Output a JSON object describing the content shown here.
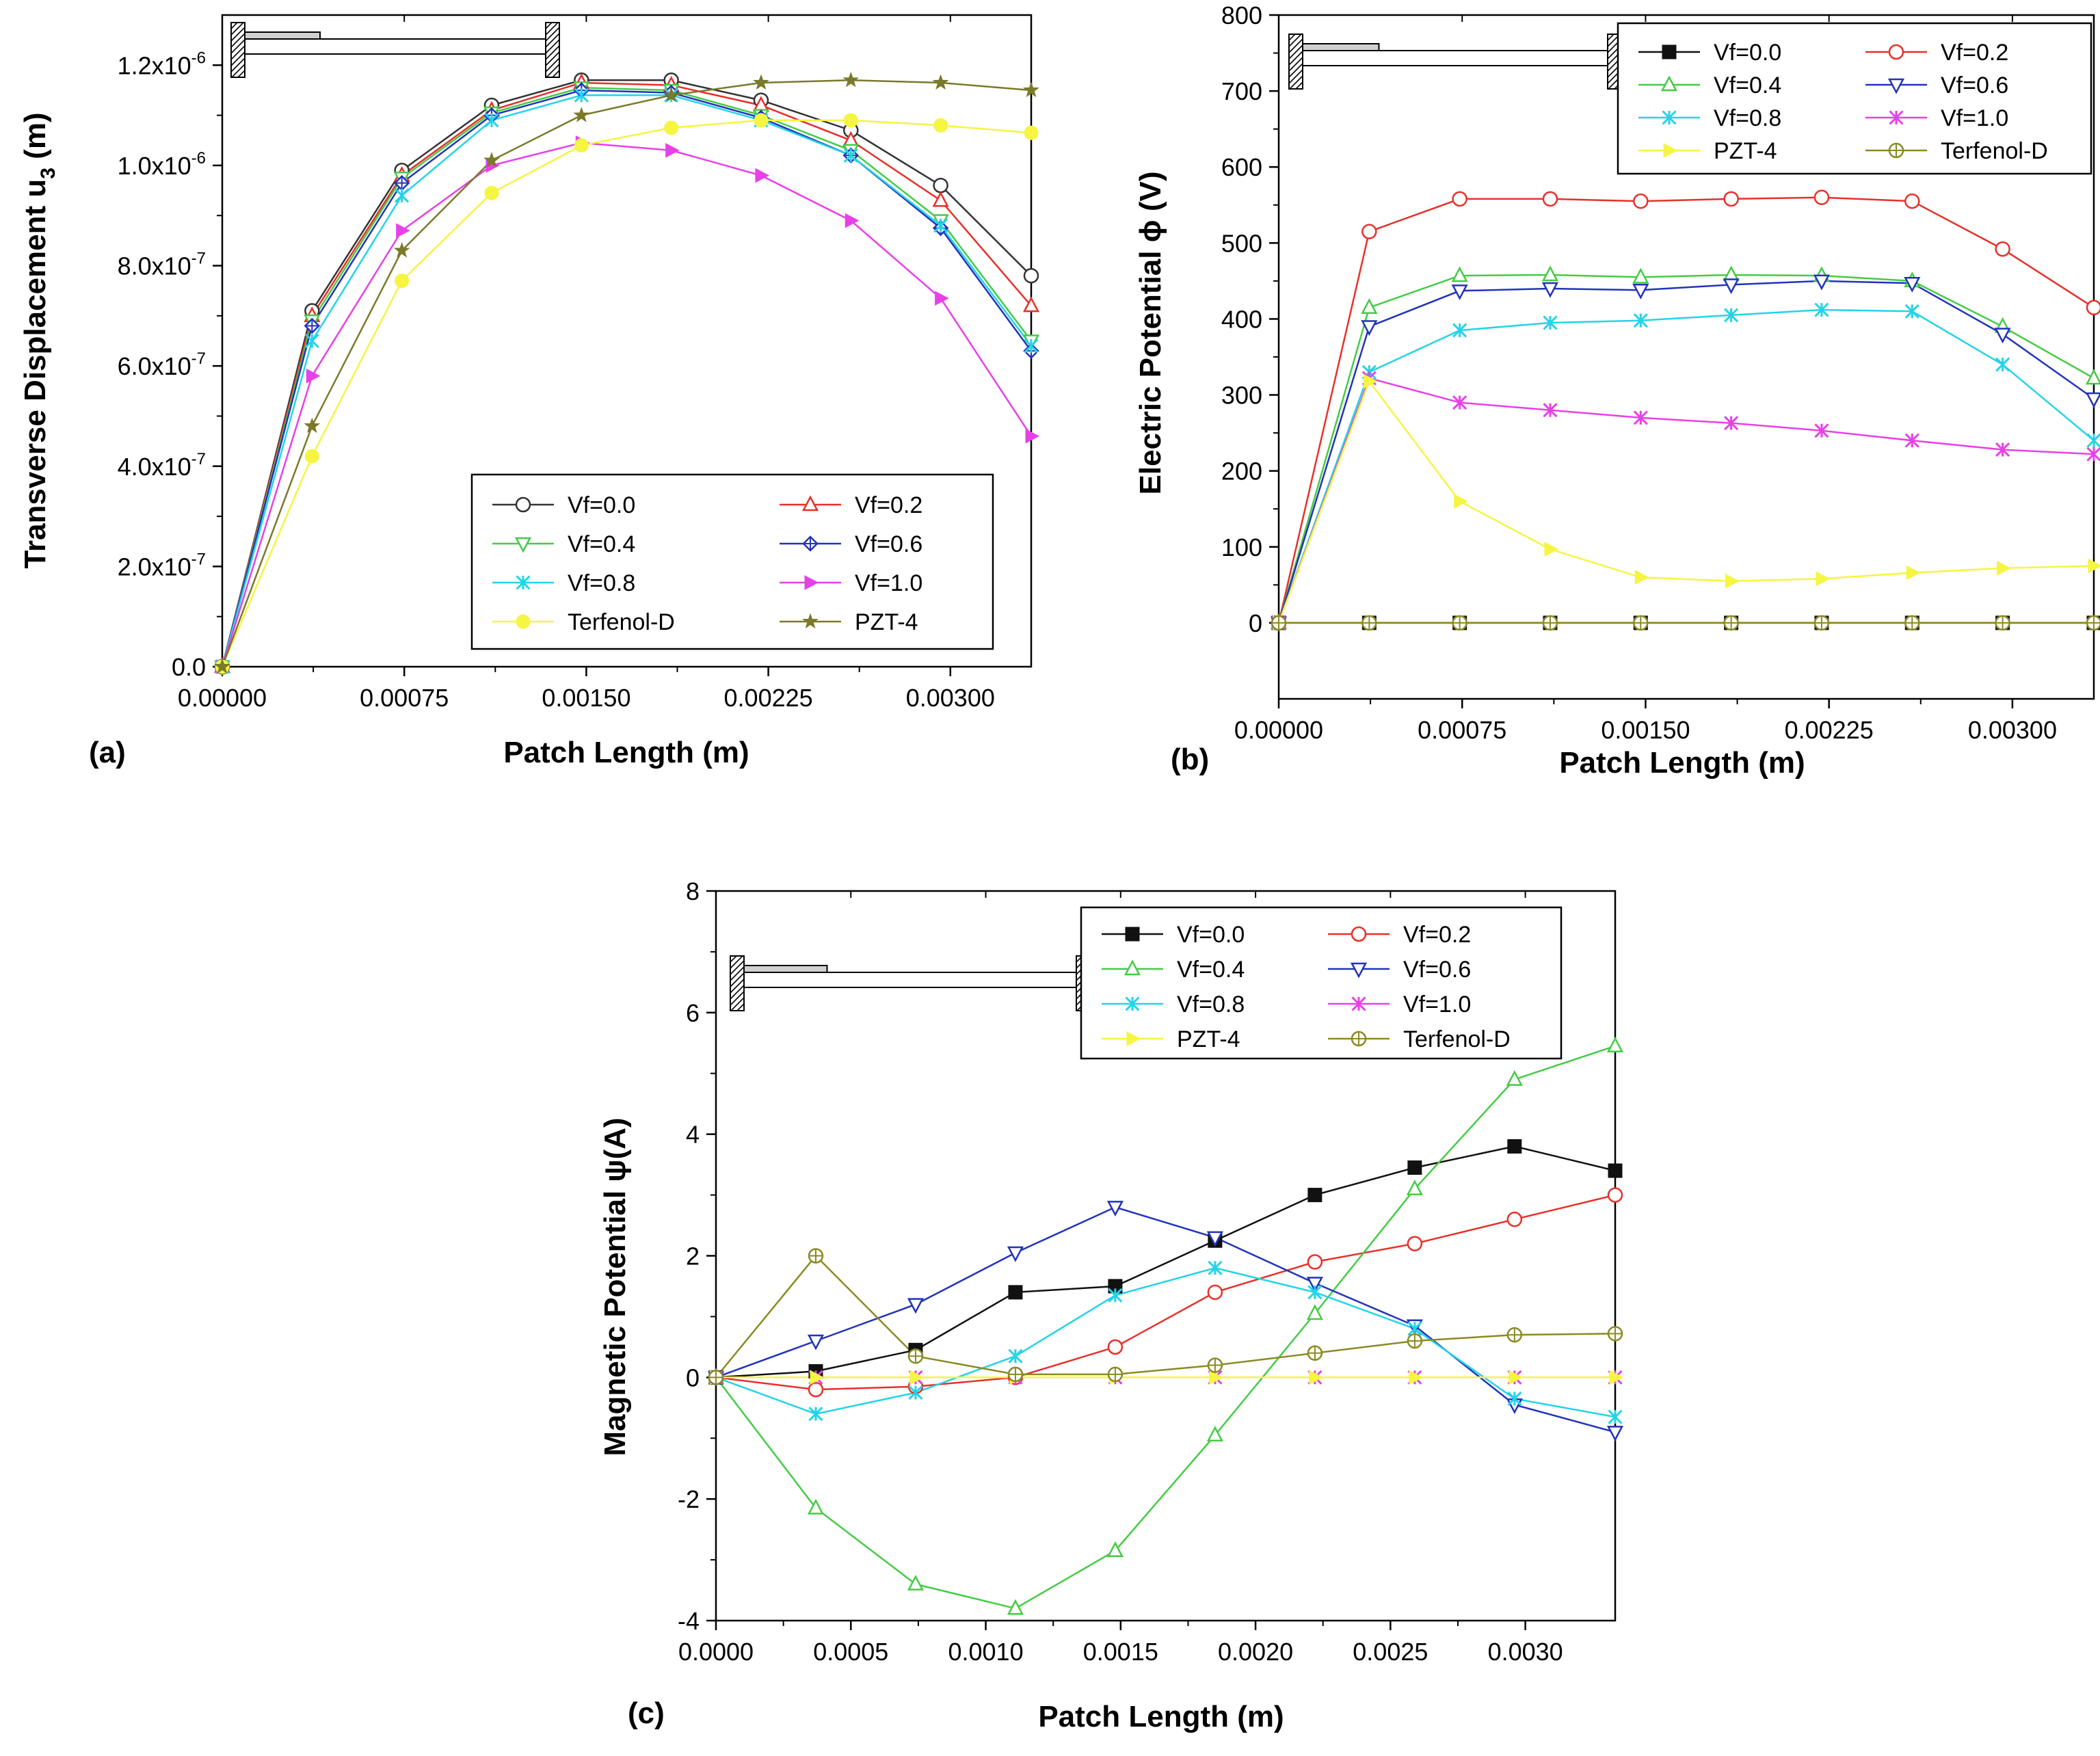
{
  "chart_data": [
    {
      "panel": "(a)",
      "type": "line",
      "xlabel": "Patch Length (m)",
      "ylabel": "Transverse Displacement u3 (m)",
      "ylabel_parts": [
        "Transverse Displacement u",
        "3",
        " (m)"
      ],
      "xlim": [
        0,
        0.003333
      ],
      "ylim": [
        0,
        1.3e-06
      ],
      "xticks": [
        0,
        0.00075,
        0.0015,
        0.00225,
        0.003
      ],
      "xtick_labels": [
        "0.00000",
        "0.00075",
        "0.00150",
        "0.00225",
        "0.00300"
      ],
      "yticks": [
        0,
        2e-07,
        4e-07,
        6e-07,
        8e-07,
        1e-06,
        1.2e-06
      ],
      "ytick_labels": [
        {
          "text": "0.0",
          "exp": ""
        },
        {
          "text": "2.0x10",
          "exp": "-7"
        },
        {
          "text": "4.0x10",
          "exp": "-7"
        },
        {
          "text": "6.0x10",
          "exp": "-7"
        },
        {
          "text": "8.0x10",
          "exp": "-7"
        },
        {
          "text": "1.0x10",
          "exp": "-6"
        },
        {
          "text": "1.2x10",
          "exp": "-6"
        }
      ],
      "legend": {
        "position": "lower-right",
        "columns": 2
      },
      "x": [
        0,
        0.00037,
        0.00074,
        0.00111,
        0.00148,
        0.00185,
        0.00222,
        0.00259,
        0.00296,
        0.003333
      ],
      "series": [
        {
          "name": "Vf=0.0",
          "color": "#333333",
          "marker": "circle-open",
          "values": [
            0,
            7.1e-07,
            9.9e-07,
            1.12e-06,
            1.17e-06,
            1.17e-06,
            1.13e-06,
            1.07e-06,
            9.6e-07,
            7.8e-07
          ]
        },
        {
          "name": "Vf=0.2",
          "color": "#e8302a",
          "marker": "triangle-open",
          "values": [
            0,
            7e-07,
            9.8e-07,
            1.11e-06,
            1.165e-06,
            1.16e-06,
            1.12e-06,
            1.05e-06,
            9.3e-07,
            7.2e-07
          ]
        },
        {
          "name": "Vf=0.4",
          "color": "#44cc44",
          "marker": "triangle-down-open",
          "values": [
            0,
            6.9e-07,
            9.75e-07,
            1.105e-06,
            1.155e-06,
            1.15e-06,
            1.1e-06,
            1.03e-06,
            8.9e-07,
            6.5e-07
          ]
        },
        {
          "name": "Vf=0.6",
          "color": "#2233bb",
          "marker": "diamond-cross",
          "values": [
            0,
            6.8e-07,
            9.65e-07,
            1.1e-06,
            1.15e-06,
            1.145e-06,
            1.095e-06,
            1.02e-06,
            8.75e-07,
            6.3e-07
          ]
        },
        {
          "name": "Vf=0.8",
          "color": "#22d4e8",
          "marker": "star-x",
          "values": [
            0,
            6.5e-07,
            9.4e-07,
            1.09e-06,
            1.14e-06,
            1.14e-06,
            1.09e-06,
            1.02e-06,
            8.8e-07,
            6.4e-07
          ]
        },
        {
          "name": "Vf=1.0",
          "color": "#e840e8",
          "marker": "triangle-right",
          "values": [
            0,
            5.8e-07,
            8.7e-07,
            1e-06,
            1.045e-06,
            1.03e-06,
            9.8e-07,
            8.9e-07,
            7.35e-07,
            4.6e-07
          ]
        },
        {
          "name": "Terfenol-D",
          "color": "#f5f542",
          "marker": "circle",
          "values": [
            0,
            4.2e-07,
            7.7e-07,
            9.45e-07,
            1.04e-06,
            1.075e-06,
            1.09e-06,
            1.09e-06,
            1.08e-06,
            1.065e-06
          ]
        },
        {
          "name": "PZT-4",
          "color": "#7a7a2a",
          "marker": "star",
          "values": [
            0,
            4.8e-07,
            8.3e-07,
            1.01e-06,
            1.1e-06,
            1.14e-06,
            1.165e-06,
            1.17e-06,
            1.165e-06,
            1.15e-06
          ]
        }
      ]
    },
    {
      "panel": "(b)",
      "type": "line",
      "xlabel": "Patch Length (m)",
      "ylabel": "Electric Potential  ϕ (V)",
      "xlim": [
        0,
        0.003333
      ],
      "ylim": [
        -100,
        800
      ],
      "xticks": [
        0,
        0.00075,
        0.0015,
        0.00225,
        0.003
      ],
      "xtick_labels": [
        "0.00000",
        "0.00075",
        "0.00150",
        "0.00225",
        "0.00300"
      ],
      "yticks": [
        0,
        100,
        200,
        300,
        400,
        500,
        600,
        700,
        800
      ],
      "ytick_labels": [
        {
          "text": "0",
          "exp": ""
        },
        {
          "text": "100",
          "exp": ""
        },
        {
          "text": "200",
          "exp": ""
        },
        {
          "text": "300",
          "exp": ""
        },
        {
          "text": "400",
          "exp": ""
        },
        {
          "text": "500",
          "exp": ""
        },
        {
          "text": "600",
          "exp": ""
        },
        {
          "text": "700",
          "exp": ""
        },
        {
          "text": "800",
          "exp": ""
        }
      ],
      "legend": {
        "position": "top-right",
        "columns": 2
      },
      "x": [
        0,
        0.00037,
        0.00074,
        0.00111,
        0.00148,
        0.00185,
        0.00222,
        0.00259,
        0.00296,
        0.003333
      ],
      "series": [
        {
          "name": "Vf=0.0",
          "color": "#111111",
          "marker": "square",
          "values": [
            0,
            0,
            0,
            0,
            0,
            0,
            0,
            0,
            0,
            0
          ]
        },
        {
          "name": "Vf=0.2",
          "color": "#e8302a",
          "marker": "circle-open",
          "values": [
            0,
            515,
            558,
            558,
            555,
            558,
            560,
            555,
            492,
            415
          ]
        },
        {
          "name": "Vf=0.4",
          "color": "#44cc44",
          "marker": "triangle-open",
          "values": [
            0,
            415,
            457,
            458,
            455,
            458,
            457,
            450,
            390,
            322
          ]
        },
        {
          "name": "Vf=0.6",
          "color": "#2233bb",
          "marker": "triangle-down-open",
          "values": [
            0,
            390,
            437,
            440,
            438,
            445,
            450,
            447,
            380,
            295
          ]
        },
        {
          "name": "Vf=0.8",
          "color": "#22d4e8",
          "marker": "star-x",
          "values": [
            0,
            330,
            385,
            395,
            398,
            405,
            412,
            410,
            340,
            240
          ]
        },
        {
          "name": "Vf=1.0",
          "color": "#e840e8",
          "marker": "star-x",
          "values": [
            0,
            322,
            290,
            280,
            270,
            263,
            253,
            240,
            228,
            222
          ]
        },
        {
          "name": "PZT-4",
          "color": "#f5f542",
          "marker": "triangle-right",
          "values": [
            0,
            318,
            160,
            97,
            60,
            55,
            58,
            66,
            72,
            75
          ]
        },
        {
          "name": "Terfenol-D",
          "color": "#8a8a22",
          "marker": "circle-plus",
          "values": [
            0,
            0,
            0,
            0,
            0,
            0,
            0,
            0,
            0,
            0
          ]
        }
      ]
    },
    {
      "panel": "(c)",
      "type": "line",
      "xlabel": "Patch Length (m)",
      "ylabel": "Magnetic Potential ψ(A)",
      "xlim": [
        0,
        0.003333
      ],
      "ylim": [
        -4,
        8
      ],
      "xticks": [
        0,
        0.0005,
        0.001,
        0.0015,
        0.002,
        0.0025,
        0.003
      ],
      "xtick_labels": [
        "0.0000",
        "0.0005",
        "0.0010",
        "0.0015",
        "0.0020",
        "0.0025",
        "0.0030"
      ],
      "yticks": [
        -4,
        -2,
        0,
        2,
        4,
        6,
        8
      ],
      "ytick_labels": [
        {
          "text": "-4",
          "exp": ""
        },
        {
          "text": "-2",
          "exp": ""
        },
        {
          "text": "0",
          "exp": ""
        },
        {
          "text": "2",
          "exp": ""
        },
        {
          "text": "4",
          "exp": ""
        },
        {
          "text": "6",
          "exp": ""
        },
        {
          "text": "8",
          "exp": ""
        }
      ],
      "legend": {
        "position": "top-right",
        "columns": 2
      },
      "x": [
        0,
        0.00037,
        0.00074,
        0.00111,
        0.00148,
        0.00185,
        0.00222,
        0.00259,
        0.00296,
        0.003333
      ],
      "series": [
        {
          "name": "Vf=0.0",
          "color": "#111111",
          "marker": "square",
          "values": [
            0,
            0.1,
            0.45,
            1.4,
            1.5,
            2.25,
            3.0,
            3.45,
            3.8,
            3.4
          ]
        },
        {
          "name": "Vf=0.2",
          "color": "#e8302a",
          "marker": "circle-open",
          "values": [
            0,
            -0.2,
            -0.15,
            0,
            0.5,
            1.4,
            1.9,
            2.2,
            2.6,
            3.0
          ]
        },
        {
          "name": "Vf=0.4",
          "color": "#44cc44",
          "marker": "triangle-open",
          "values": [
            0,
            -2.15,
            -3.4,
            -3.8,
            -2.85,
            -0.95,
            1.05,
            3.1,
            4.9,
            5.45
          ]
        },
        {
          "name": "Vf=0.6",
          "color": "#2233bb",
          "marker": "triangle-down-open",
          "values": [
            0,
            0.6,
            1.2,
            2.05,
            2.8,
            2.3,
            1.55,
            0.85,
            -0.45,
            -0.9
          ]
        },
        {
          "name": "Vf=0.8",
          "color": "#22d4e8",
          "marker": "star-x",
          "values": [
            0,
            -0.6,
            -0.25,
            0.35,
            1.35,
            1.8,
            1.4,
            0.8,
            -0.35,
            -0.65
          ]
        },
        {
          "name": "Vf=1.0",
          "color": "#e840e8",
          "marker": "star-x",
          "values": [
            0,
            0,
            0,
            0,
            0,
            0,
            0,
            0,
            0,
            0
          ]
        },
        {
          "name": "PZT-4",
          "color": "#f5f542",
          "marker": "triangle-right",
          "values": [
            0,
            0,
            0,
            0,
            0,
            0,
            0,
            0,
            0,
            0
          ]
        },
        {
          "name": "Terfenol-D",
          "color": "#8a8a22",
          "marker": "circle-plus",
          "values": [
            0,
            2.0,
            0.35,
            0.05,
            0.05,
            0.2,
            0.4,
            0.6,
            0.7,
            0.72
          ]
        }
      ]
    }
  ]
}
